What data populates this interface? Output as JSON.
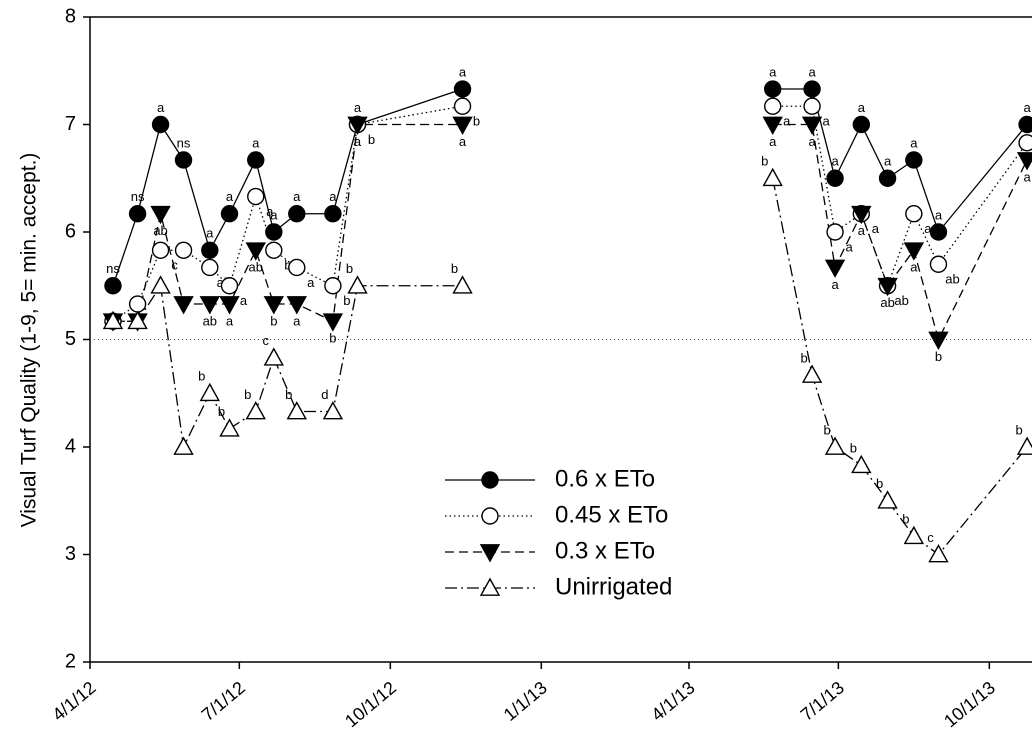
{
  "chart_data": {
    "type": "line",
    "y_label": "Visual Turf Quality (1-9, 5= min. accept.)",
    "x": [
      "4/15/12",
      "4/30/12",
      "5/14/12",
      "5/28/12",
      "6/13/12",
      "6/25/12",
      "7/11/12",
      "7/22/12",
      "8/5/12",
      "8/27/12",
      "9/11/12",
      "11/14/12",
      null,
      "5/22/13",
      "6/15/13",
      "6/29/13",
      "7/15/13",
      "7/31/13",
      "8/16/13",
      "8/31/13",
      "10/24/13"
    ],
    "xlim": [
      "4/1/12",
      "10/27/13"
    ],
    "xticks": [
      "4/1/12",
      "7/1/12",
      "10/1/12",
      "1/1/13",
      "4/1/13",
      "7/1/13",
      "10/1/13"
    ],
    "ylim": [
      2,
      8
    ],
    "yticks": [
      2,
      3,
      4,
      5,
      6,
      7,
      8
    ],
    "hline": 5,
    "legend_position": "center",
    "series": [
      {
        "name": "0.6 x ETo",
        "color": "#000000",
        "line_style": "solid",
        "marker": "circle",
        "filled": true,
        "values": [
          5.5,
          6.17,
          7.0,
          6.67,
          5.83,
          6.17,
          6.67,
          6.0,
          6.17,
          6.17,
          7.0,
          7.33,
          null,
          7.33,
          7.33,
          6.5,
          7.0,
          6.5,
          6.67,
          6.0,
          7.0
        ],
        "labels": [
          "ns",
          "ns",
          "a",
          "ns",
          "a",
          "a",
          "a",
          "a",
          "a",
          "a",
          "a",
          "a",
          null,
          "a",
          "a",
          "a",
          "a",
          "a",
          "a",
          "a",
          "a"
        ]
      },
      {
        "name": "0.45 x ETo",
        "color": "#000000",
        "line_style": "dotted",
        "marker": "circle",
        "filled": false,
        "values": [
          5.17,
          5.33,
          5.83,
          5.83,
          5.67,
          5.5,
          6.33,
          5.83,
          5.67,
          5.5,
          7.0,
          7.17,
          null,
          7.17,
          7.17,
          6.0,
          6.17,
          5.5,
          6.17,
          5.7,
          6.83
        ],
        "labels": [
          null,
          null,
          "c",
          null,
          "ab",
          "a",
          "a",
          "b",
          "a",
          "b",
          "b",
          "b",
          null,
          "a",
          "a",
          "a",
          "a",
          "ab",
          "a",
          "ab",
          "a"
        ]
      },
      {
        "name": "0.3 x ETo",
        "color": "#000000",
        "line_style": "dashed",
        "marker": "triangle-down",
        "filled": true,
        "values": [
          5.17,
          5.17,
          6.17,
          5.33,
          5.33,
          5.33,
          5.83,
          5.33,
          5.33,
          5.17,
          7.0,
          7.0,
          null,
          7.0,
          7.0,
          5.67,
          6.17,
          5.5,
          5.83,
          5.0,
          6.67
        ],
        "labels": [
          null,
          null,
          "ab",
          null,
          "ab",
          "a",
          "ab",
          "b",
          "a",
          "b",
          "a",
          "a",
          null,
          "a",
          "a",
          "a",
          "a",
          "ab",
          "a",
          "b",
          "a"
        ]
      },
      {
        "name": "Unirrigated",
        "color": "#000000",
        "line_style": "dashdot",
        "marker": "triangle-up",
        "filled": false,
        "values": [
          5.17,
          5.17,
          5.5,
          4.0,
          4.5,
          4.17,
          4.33,
          4.83,
          4.33,
          4.33,
          5.5,
          5.5,
          null,
          6.5,
          4.67,
          4.0,
          3.83,
          3.5,
          3.17,
          3.0,
          4.0
        ],
        "labels": [
          null,
          null,
          null,
          null,
          "b",
          "b",
          "b",
          "c",
          "b",
          "d",
          "b",
          "b",
          null,
          "b",
          "b",
          "b",
          "b",
          "b",
          "b",
          "c",
          "b"
        ]
      }
    ]
  }
}
